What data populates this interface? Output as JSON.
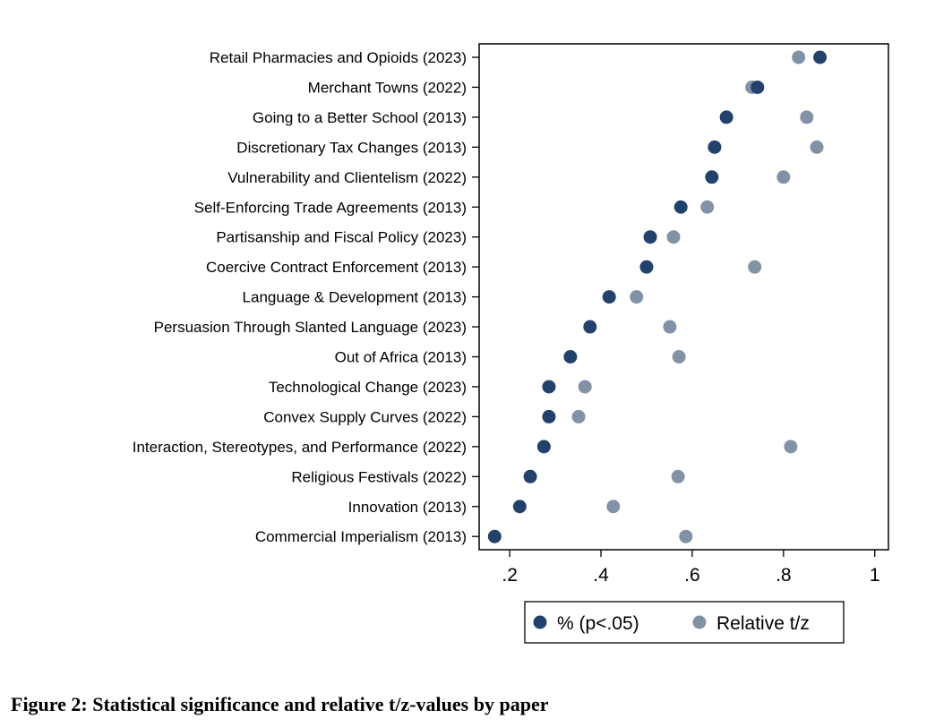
{
  "chart_data": {
    "type": "scatter",
    "orientation": "horizontal dot plot",
    "categories": [
      "Retail Pharmacies and Opioids (2023)",
      "Merchant Towns (2022)",
      "Going to a Better School (2013)",
      "Discretionary Tax Changes (2013)",
      "Vulnerability and Clientelism (2022)",
      "Self-Enforcing Trade Agreements (2013)",
      "Partisanship and Fiscal Policy (2023)",
      "Coercive Contract Enforcement (2013)",
      "Language & Development (2013)",
      "Persuasion Through Slanted Language (2023)",
      "Out of Africa (2013)",
      "Technological Change (2023)",
      "Convex Supply Curves (2022)",
      "Interaction, Stereotypes, and Performance (2022)",
      "Religious Festivals (2022)",
      "Innovation (2013)",
      "Commercial Imperialism (2013)"
    ],
    "series": [
      {
        "name": "% (p<.05)",
        "color": "#22426b",
        "values": [
          0.88,
          0.743,
          0.675,
          0.649,
          0.643,
          0.575,
          0.508,
          0.5,
          0.418,
          0.376,
          0.333,
          0.286,
          0.286,
          0.275,
          0.245,
          0.222,
          0.167
        ]
      },
      {
        "name": "Relative t/z",
        "color": "#8292a6",
        "values": [
          0.833,
          0.731,
          0.851,
          0.873,
          0.8,
          0.633,
          0.559,
          0.737,
          0.478,
          0.551,
          0.571,
          0.365,
          0.351,
          0.816,
          0.569,
          0.427,
          0.586
        ]
      }
    ],
    "xticks": [
      0.2,
      0.4,
      0.6,
      0.8,
      1
    ],
    "xtick_labels": [
      ".2",
      ".4",
      ".6",
      ".8",
      "1"
    ],
    "xlim": [
      0.133,
      1.03
    ],
    "grid": false,
    "legend_placement": "bottom",
    "title": "",
    "xlabel": "",
    "ylabel": ""
  },
  "caption": "Figure 2: Statistical significance and relative t/z-values by paper"
}
